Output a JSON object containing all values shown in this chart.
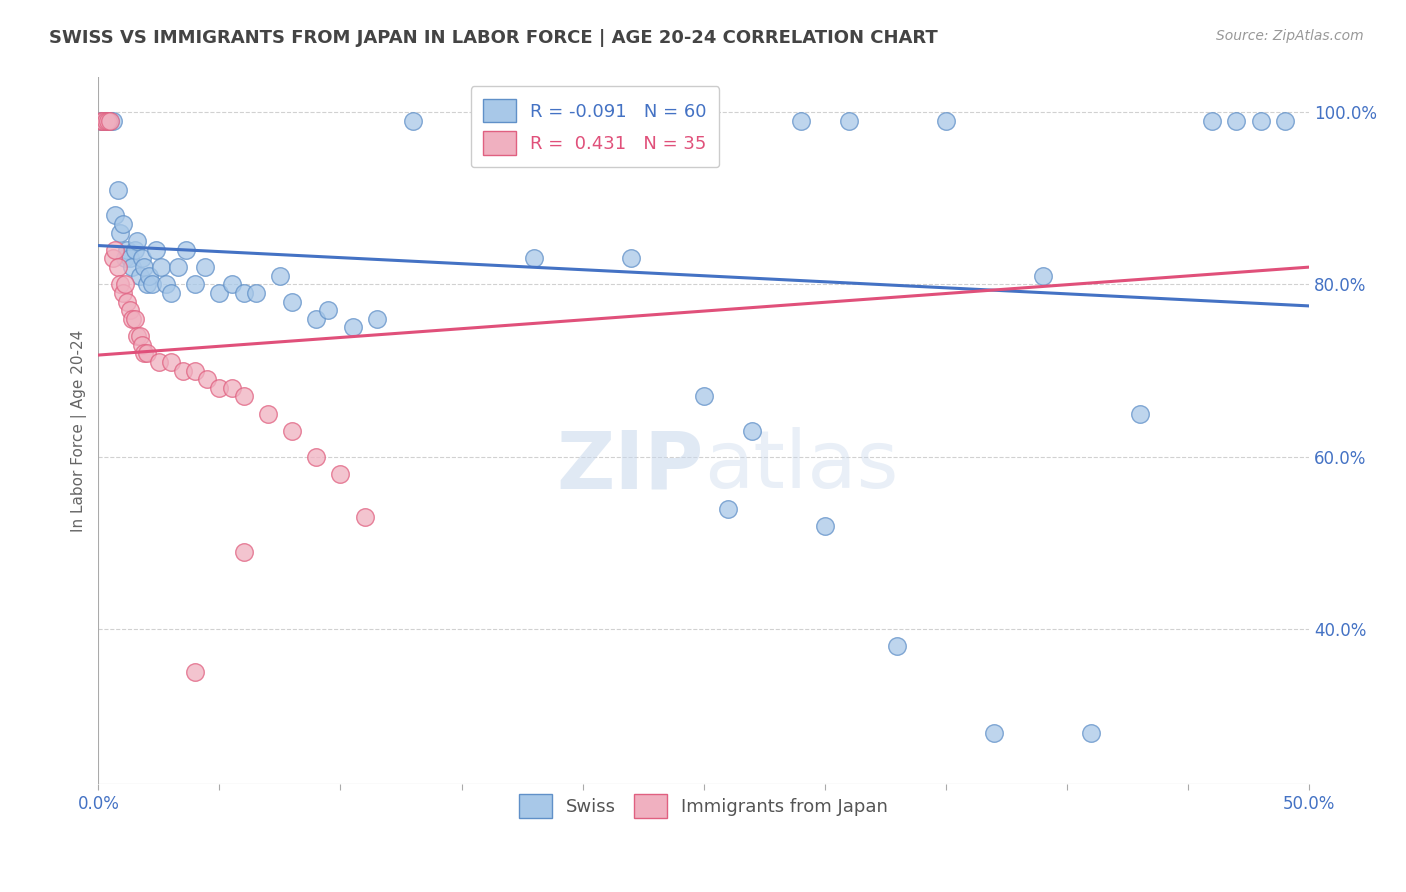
{
  "title": "SWISS VS IMMIGRANTS FROM JAPAN IN LABOR FORCE | AGE 20-24 CORRELATION CHART",
  "source": "Source: ZipAtlas.com",
  "ylabel": "In Labor Force | Age 20-24",
  "watermark": "ZIPatlas",
  "legend_blue_r": "R = -0.091",
  "legend_blue_n": "N = 60",
  "legend_pink_r": "R =  0.431",
  "legend_pink_n": "N = 35",
  "blue_scatter": [
    [
      0.001,
      0.99
    ],
    [
      0.002,
      0.99
    ],
    [
      0.003,
      0.99
    ],
    [
      0.004,
      0.99
    ],
    [
      0.005,
      0.99
    ],
    [
      0.006,
      0.99
    ],
    [
      0.007,
      0.88
    ],
    [
      0.008,
      0.91
    ],
    [
      0.009,
      0.86
    ],
    [
      0.01,
      0.87
    ],
    [
      0.011,
      0.83
    ],
    [
      0.012,
      0.84
    ],
    [
      0.013,
      0.83
    ],
    [
      0.014,
      0.82
    ],
    [
      0.015,
      0.84
    ],
    [
      0.016,
      0.85
    ],
    [
      0.017,
      0.81
    ],
    [
      0.018,
      0.83
    ],
    [
      0.019,
      0.82
    ],
    [
      0.02,
      0.8
    ],
    [
      0.021,
      0.81
    ],
    [
      0.022,
      0.8
    ],
    [
      0.024,
      0.84
    ],
    [
      0.026,
      0.82
    ],
    [
      0.028,
      0.8
    ],
    [
      0.03,
      0.79
    ],
    [
      0.033,
      0.82
    ],
    [
      0.036,
      0.84
    ],
    [
      0.04,
      0.8
    ],
    [
      0.044,
      0.82
    ],
    [
      0.05,
      0.79
    ],
    [
      0.055,
      0.8
    ],
    [
      0.06,
      0.79
    ],
    [
      0.065,
      0.79
    ],
    [
      0.075,
      0.81
    ],
    [
      0.08,
      0.78
    ],
    [
      0.09,
      0.76
    ],
    [
      0.095,
      0.77
    ],
    [
      0.105,
      0.75
    ],
    [
      0.115,
      0.76
    ],
    [
      0.13,
      0.99
    ],
    [
      0.16,
      0.99
    ],
    [
      0.18,
      0.83
    ],
    [
      0.22,
      0.83
    ],
    [
      0.29,
      0.99
    ],
    [
      0.31,
      0.99
    ],
    [
      0.35,
      0.99
    ],
    [
      0.39,
      0.81
    ],
    [
      0.43,
      0.65
    ],
    [
      0.25,
      0.67
    ],
    [
      0.27,
      0.63
    ],
    [
      0.3,
      0.52
    ],
    [
      0.26,
      0.54
    ],
    [
      0.37,
      0.28
    ],
    [
      0.46,
      0.99
    ],
    [
      0.47,
      0.99
    ],
    [
      0.48,
      0.99
    ],
    [
      0.49,
      0.99
    ],
    [
      0.33,
      0.38
    ],
    [
      0.41,
      0.28
    ]
  ],
  "pink_scatter": [
    [
      0.001,
      0.99
    ],
    [
      0.002,
      0.99
    ],
    [
      0.003,
      0.99
    ],
    [
      0.004,
      0.99
    ],
    [
      0.005,
      0.99
    ],
    [
      0.006,
      0.83
    ],
    [
      0.007,
      0.84
    ],
    [
      0.008,
      0.82
    ],
    [
      0.009,
      0.8
    ],
    [
      0.01,
      0.79
    ],
    [
      0.011,
      0.8
    ],
    [
      0.012,
      0.78
    ],
    [
      0.013,
      0.77
    ],
    [
      0.014,
      0.76
    ],
    [
      0.015,
      0.76
    ],
    [
      0.016,
      0.74
    ],
    [
      0.017,
      0.74
    ],
    [
      0.018,
      0.73
    ],
    [
      0.019,
      0.72
    ],
    [
      0.02,
      0.72
    ],
    [
      0.025,
      0.71
    ],
    [
      0.03,
      0.71
    ],
    [
      0.035,
      0.7
    ],
    [
      0.04,
      0.7
    ],
    [
      0.045,
      0.69
    ],
    [
      0.05,
      0.68
    ],
    [
      0.055,
      0.68
    ],
    [
      0.06,
      0.67
    ],
    [
      0.07,
      0.65
    ],
    [
      0.08,
      0.63
    ],
    [
      0.09,
      0.6
    ],
    [
      0.1,
      0.58
    ],
    [
      0.11,
      0.53
    ],
    [
      0.04,
      0.35
    ],
    [
      0.06,
      0.49
    ]
  ],
  "blue_line_x": [
    0.0,
    0.5
  ],
  "blue_line_y": [
    0.845,
    0.775
  ],
  "pink_line_x": [
    0.0,
    0.5
  ],
  "pink_line_y": [
    0.718,
    0.82
  ],
  "xlim": [
    0.0,
    0.5
  ],
  "ylim": [
    0.22,
    1.04
  ],
  "background_color": "#ffffff",
  "grid_color": "#cccccc",
  "blue_color": "#a8c8e8",
  "pink_color": "#f0b0c0",
  "blue_edge_color": "#6090c8",
  "pink_edge_color": "#e06080",
  "blue_line_color": "#4472c4",
  "pink_line_color": "#e0507a",
  "title_color": "#444444",
  "axis_color": "#4472c4",
  "source_color": "#999999",
  "ytick_positions": [
    0.4,
    0.6,
    0.8,
    1.0
  ],
  "ytick_labels": [
    "40.0%",
    "60.0%",
    "80.0%",
    "100.0%"
  ],
  "xtick_positions": [
    0.0,
    0.05,
    0.1,
    0.15,
    0.2,
    0.25,
    0.3,
    0.35,
    0.4,
    0.45,
    0.5
  ],
  "xlabel_show": [
    0.0,
    0.5
  ],
  "xlabel_labels": [
    "0.0%",
    "50.0%"
  ]
}
